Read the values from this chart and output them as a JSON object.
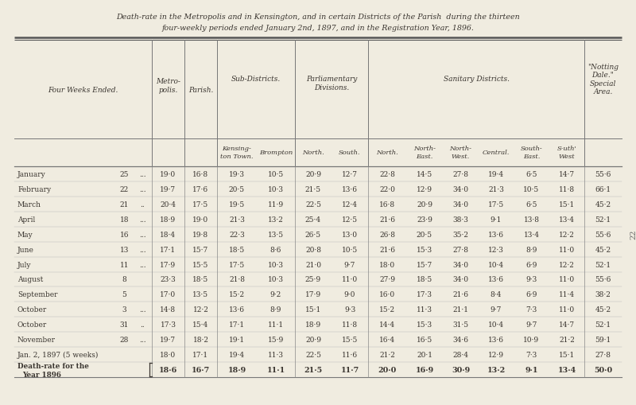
{
  "title_line1": "Death-rate in the Metropolis and in Kensington, and in certain Districts of the Parish  during the thirteen",
  "title_line2": "four-weekly periods ended January 2nd, 1897, and in the Registration Year, 1896.",
  "bg_color": "#f0ece0",
  "text_color": "#3a3530",
  "rows": [
    [
      "January",
      "25",
      "...",
      "19·0",
      "16·8",
      "19·3",
      "10·5",
      "20·9",
      "12·7",
      "22·8",
      "14·5",
      "27·8",
      "19·4",
      "6·5",
      "14·7",
      "55·6"
    ],
    [
      "February",
      "22",
      "...",
      "19·7",
      "17·6",
      "20·5",
      "10·3",
      "21·5",
      "13·6",
      "22·0",
      "12·9",
      "34·0",
      "21·3",
      "10·5",
      "11·8",
      "66·1"
    ],
    [
      "March",
      "21",
      "..",
      "20·4",
      "17·5",
      "19·5",
      "11·9",
      "22·5",
      "12·4",
      "16·8",
      "20·9",
      "34·0",
      "17·5",
      "6·5",
      "15·1",
      "45·2"
    ],
    [
      "April",
      "18",
      "...",
      "18·9",
      "19·0",
      "21·3",
      "13·2",
      "25·4",
      "12·5",
      "21·6",
      "23·9",
      "38·3",
      "9·1",
      "13·8",
      "13·4",
      "52·1"
    ],
    [
      "May",
      "16",
      "...",
      "18·4",
      "19·8",
      "22·3",
      "13·5",
      "26·5",
      "13·0",
      "26·8",
      "20·5",
      "35·2",
      "13·6",
      "13·4",
      "12·2",
      "55·6"
    ],
    [
      "June",
      "13",
      "...",
      "17·1",
      "15·7",
      "18·5",
      "8·6",
      "20·8",
      "10·5",
      "21·6",
      "15·3",
      "27·8",
      "12·3",
      "8·9",
      "11·0",
      "45·2"
    ],
    [
      "July",
      "11",
      "...",
      "17·9",
      "15·5",
      "17·5",
      "10·3",
      "21·0",
      "9·7",
      "18·0",
      "15·7",
      "34·0",
      "10·4",
      "6·9",
      "12·2",
      "52·1"
    ],
    [
      "August",
      "8",
      "",
      "23·3",
      "18·5",
      "21·8",
      "10·3",
      "25·9",
      "11·0",
      "27·9",
      "18·5",
      "34·0",
      "13·6",
      "9·3",
      "11·0",
      "55·6"
    ],
    [
      "September",
      "5",
      "",
      "17·0",
      "13·5",
      "15·2",
      "9·2",
      "17·9",
      "9·0",
      "16·0",
      "17·3",
      "21·6",
      "8·4",
      "6·9",
      "11·4",
      "38·2"
    ],
    [
      "October",
      "3",
      "...",
      "14·8",
      "12·2",
      "13·6",
      "8·9",
      "15·1",
      "9·3",
      "15·2",
      "11·3",
      "21·1",
      "9·7",
      "7·3",
      "11·0",
      "45·2"
    ],
    [
      "October",
      "31",
      "..",
      "17·3",
      "15·4",
      "17·1",
      "11·1",
      "18·9",
      "11·8",
      "14·4",
      "15·3",
      "31·5",
      "10·4",
      "9·7",
      "14·7",
      "52·1"
    ],
    [
      "November",
      "28",
      "...",
      "19·7",
      "18·2",
      "19·1",
      "15·9",
      "20·9",
      "15·5",
      "16·4",
      "16·5",
      "34·6",
      "13·6",
      "10·9",
      "21·2",
      "59·1"
    ],
    [
      "Jan. 2, 1897 (5 weeks)",
      "",
      "",
      "18·0",
      "17·1",
      "19·4",
      "11·3",
      "22·5",
      "11·6",
      "21·2",
      "20·1",
      "28·4",
      "12·9",
      "7·3",
      "15·1",
      "27·8"
    ],
    [
      "Death-rate for the\nYear 1896",
      "",
      "",
      "18·6",
      "16·7",
      "18·9",
      "11·1",
      "21·5",
      "11·7",
      "20·0",
      "16·9",
      "30·9",
      "13·2",
      "9·1",
      "13·4",
      "50·0"
    ]
  ]
}
